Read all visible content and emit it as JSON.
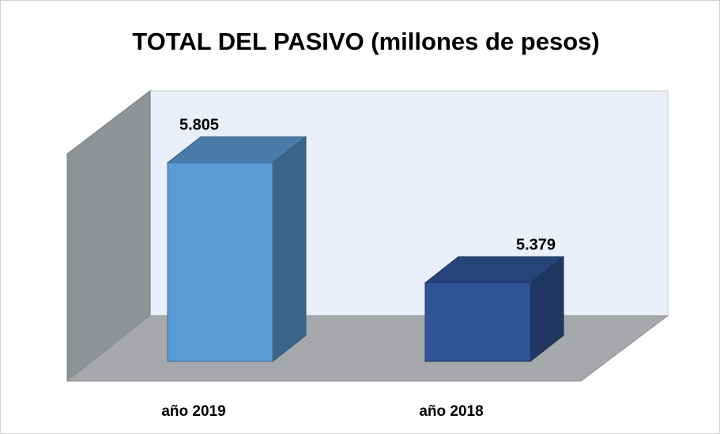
{
  "chart_data": {
    "type": "bar3d",
    "title": "TOTAL DEL PASIVO (millones de pesos)",
    "categories": [
      "año 2019",
      "año 2018"
    ],
    "values": [
      5805,
      5379
    ],
    "value_labels": [
      "5.805",
      "5.379"
    ],
    "colors": [
      "#5b9bd5",
      "#2f5597"
    ],
    "ylim": [
      5100,
      6100
    ]
  }
}
